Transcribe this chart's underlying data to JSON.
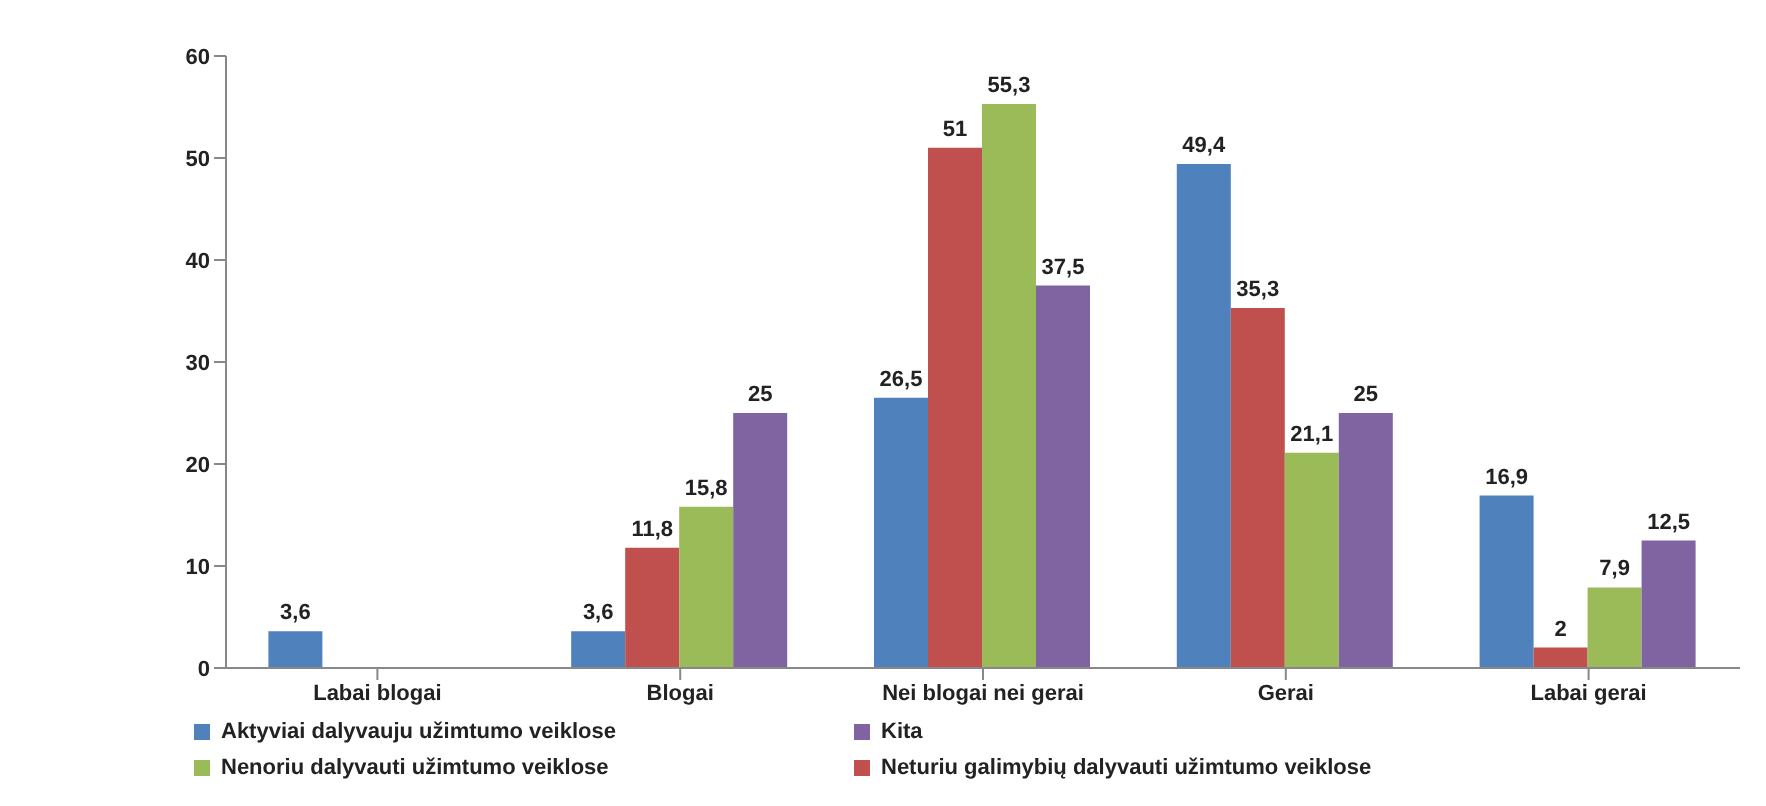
{
  "chart_data": {
    "type": "bar",
    "categories": [
      "Labai blogai",
      "Blogai",
      "Nei blogai nei gerai",
      "Gerai",
      "Labai gerai"
    ],
    "series": [
      {
        "name": "Aktyviai dalyvauju užimtumo veiklose",
        "color": "#4f81bd",
        "values": [
          3.6,
          3.6,
          26.5,
          49.4,
          16.9
        ],
        "value_labels": [
          "3,6",
          "3,6",
          "26,5",
          "49,4",
          "16,9"
        ]
      },
      {
        "name": "Neturiu galimybių dalyvauti užimtumo veiklose",
        "color": "#c0504d",
        "values": [
          null,
          11.8,
          51,
          35.3,
          2
        ],
        "value_labels": [
          null,
          "11,8",
          "51",
          "35,3",
          "2"
        ]
      },
      {
        "name": "Nenoriu dalyvauti užimtumo veiklose",
        "color": "#9bbb59",
        "values": [
          null,
          15.8,
          55.3,
          21.1,
          7.9
        ],
        "value_labels": [
          null,
          "15,8",
          "55,3",
          "21,1",
          "7,9"
        ]
      },
      {
        "name": "Kita",
        "color": "#8064a2",
        "values": [
          null,
          25,
          37.5,
          25,
          12.5
        ],
        "value_labels": [
          null,
          "25",
          "37,5",
          "25",
          "12,5"
        ]
      }
    ],
    "ylim": [
      0,
      60
    ],
    "yticks": [
      0,
      10,
      20,
      30,
      40,
      50,
      60
    ],
    "grid": false,
    "legend": "bottom"
  }
}
